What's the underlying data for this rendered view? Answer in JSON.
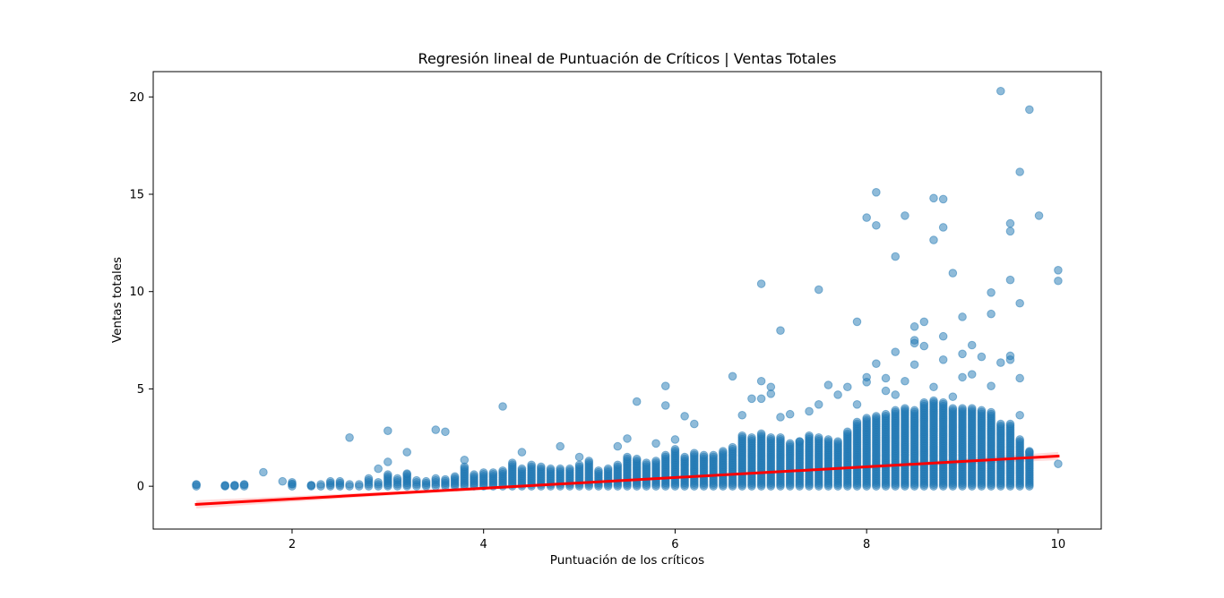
{
  "chart_data": {
    "type": "scatter",
    "title": "Regresión lineal de Puntuación de Críticos | Ventas Totales",
    "xlabel": "Puntuación de los críticos",
    "ylabel": "Ventas totales",
    "xlim": [
      0.55,
      10.45
    ],
    "ylim": [
      -2.2,
      21.3
    ],
    "xticks": [
      2,
      4,
      6,
      8,
      10
    ],
    "yticks": [
      0,
      5,
      10,
      15,
      20
    ],
    "grid": false,
    "legend": "none",
    "colors": {
      "points": "#1f77b4",
      "regression_line": "#ff0000",
      "confidence_band": "#ff9999"
    },
    "regression": {
      "x": [
        1.0,
        10.0
      ],
      "y": [
        -0.93,
        1.55
      ]
    },
    "outliers": {
      "x": [
        1.0,
        1.3,
        1.4,
        1.5,
        1.7,
        1.9,
        2.0,
        2.2,
        2.6,
        2.9,
        3.0,
        3.0,
        3.2,
        3.2,
        3.5,
        3.6,
        3.8,
        4.2,
        4.4,
        4.8,
        5.0,
        5.4,
        5.5,
        5.6,
        5.8,
        5.9,
        5.9,
        6.0,
        6.1,
        6.2,
        6.6,
        6.7,
        6.8,
        6.9,
        6.9,
        6.9,
        7.0,
        7.0,
        7.1,
        7.1,
        7.2,
        7.3,
        7.4,
        7.5,
        7.5,
        7.6,
        7.7,
        7.8,
        7.9,
        7.9,
        8.0,
        8.0,
        8.0,
        8.1,
        8.1,
        8.1,
        8.2,
        8.2,
        8.3,
        8.3,
        8.3,
        8.4,
        8.4,
        8.5,
        8.5,
        8.5,
        8.5,
        8.6,
        8.6,
        8.7,
        8.7,
        8.7,
        8.8,
        8.8,
        8.8,
        8.8,
        8.9,
        8.9,
        9.0,
        9.0,
        9.0,
        9.1,
        9.1,
        9.2,
        9.3,
        9.3,
        9.3,
        9.4,
        9.4,
        9.5,
        9.5,
        9.5,
        9.5,
        9.5,
        9.6,
        9.6,
        9.6,
        9.6,
        9.7,
        9.7,
        9.8,
        10.0,
        10.0,
        10.0
      ],
      "y": [
        0.08,
        0.03,
        0.05,
        0.08,
        0.72,
        0.25,
        0.12,
        0.05,
        2.5,
        0.9,
        2.85,
        1.25,
        1.75,
        0.65,
        2.9,
        2.8,
        1.35,
        4.1,
        1.75,
        2.05,
        1.5,
        2.05,
        2.45,
        4.35,
        2.2,
        5.15,
        4.15,
        2.4,
        3.6,
        3.2,
        5.65,
        3.65,
        4.5,
        10.4,
        5.4,
        4.5,
        5.1,
        4.75,
        8.0,
        3.55,
        3.7,
        2.3,
        3.85,
        10.1,
        4.2,
        5.2,
        4.7,
        5.1,
        8.45,
        4.2,
        13.8,
        5.6,
        5.35,
        15.1,
        13.4,
        6.3,
        5.55,
        4.9,
        11.8,
        6.9,
        4.7,
        13.9,
        5.4,
        8.2,
        7.5,
        7.35,
        6.25,
        8.45,
        7.2,
        14.8,
        12.65,
        5.1,
        14.75,
        13.3,
        7.7,
        6.5,
        10.95,
        4.6,
        8.7,
        6.8,
        5.6,
        7.25,
        5.75,
        6.65,
        9.95,
        8.85,
        5.15,
        20.3,
        6.35,
        13.5,
        13.1,
        10.6,
        6.7,
        6.5,
        16.15,
        9.4,
        5.55,
        3.65,
        19.35,
        1.75,
        13.9,
        11.1,
        10.55,
        1.15
      ]
    },
    "cloud": {
      "x": [
        1.0,
        1.3,
        1.4,
        1.5,
        2.0,
        2.2,
        2.3,
        2.4,
        2.5,
        2.6,
        2.7,
        2.8,
        2.9,
        3.0,
        3.1,
        3.2,
        3.3,
        3.4,
        3.5,
        3.6,
        3.7,
        3.8,
        3.9,
        4.0,
        4.1,
        4.2,
        4.3,
        4.4,
        4.5,
        4.6,
        4.7,
        4.8,
        4.9,
        5.0,
        5.1,
        5.2,
        5.3,
        5.4,
        5.5,
        5.6,
        5.7,
        5.8,
        5.9,
        6.0,
        6.1,
        6.2,
        6.3,
        6.4,
        6.5,
        6.6,
        6.7,
        6.8,
        6.9,
        7.0,
        7.1,
        7.2,
        7.3,
        7.4,
        7.5,
        7.6,
        7.7,
        7.8,
        7.9,
        8.0,
        8.1,
        8.2,
        8.3,
        8.4,
        8.5,
        8.6,
        8.7,
        8.8,
        8.9,
        9.0,
        9.1,
        9.2,
        9.3,
        9.4,
        9.5,
        9.6,
        9.7
      ],
      "ymax": [
        0.1,
        0.05,
        0.05,
        0.1,
        0.2,
        0.05,
        0.1,
        0.25,
        0.25,
        0.1,
        0.1,
        0.4,
        0.2,
        0.6,
        0.4,
        0.6,
        0.3,
        0.25,
        0.4,
        0.35,
        0.5,
        1.0,
        0.6,
        0.7,
        0.7,
        0.8,
        1.2,
        0.9,
        1.1,
        1.0,
        0.9,
        0.9,
        0.9,
        1.1,
        1.3,
        0.8,
        0.9,
        1.1,
        1.5,
        1.4,
        1.2,
        1.3,
        1.6,
        1.9,
        1.5,
        1.7,
        1.6,
        1.6,
        1.8,
        2.0,
        2.6,
        2.5,
        2.7,
        2.5,
        2.5,
        2.2,
        2.3,
        2.6,
        2.5,
        2.4,
        2.3,
        2.8,
        3.3,
        3.5,
        3.6,
        3.7,
        3.9,
        4.0,
        3.9,
        4.3,
        4.4,
        4.3,
        4.0,
        4.0,
        4.0,
        3.9,
        3.8,
        3.2,
        3.2,
        2.4,
        1.8
      ]
    }
  }
}
